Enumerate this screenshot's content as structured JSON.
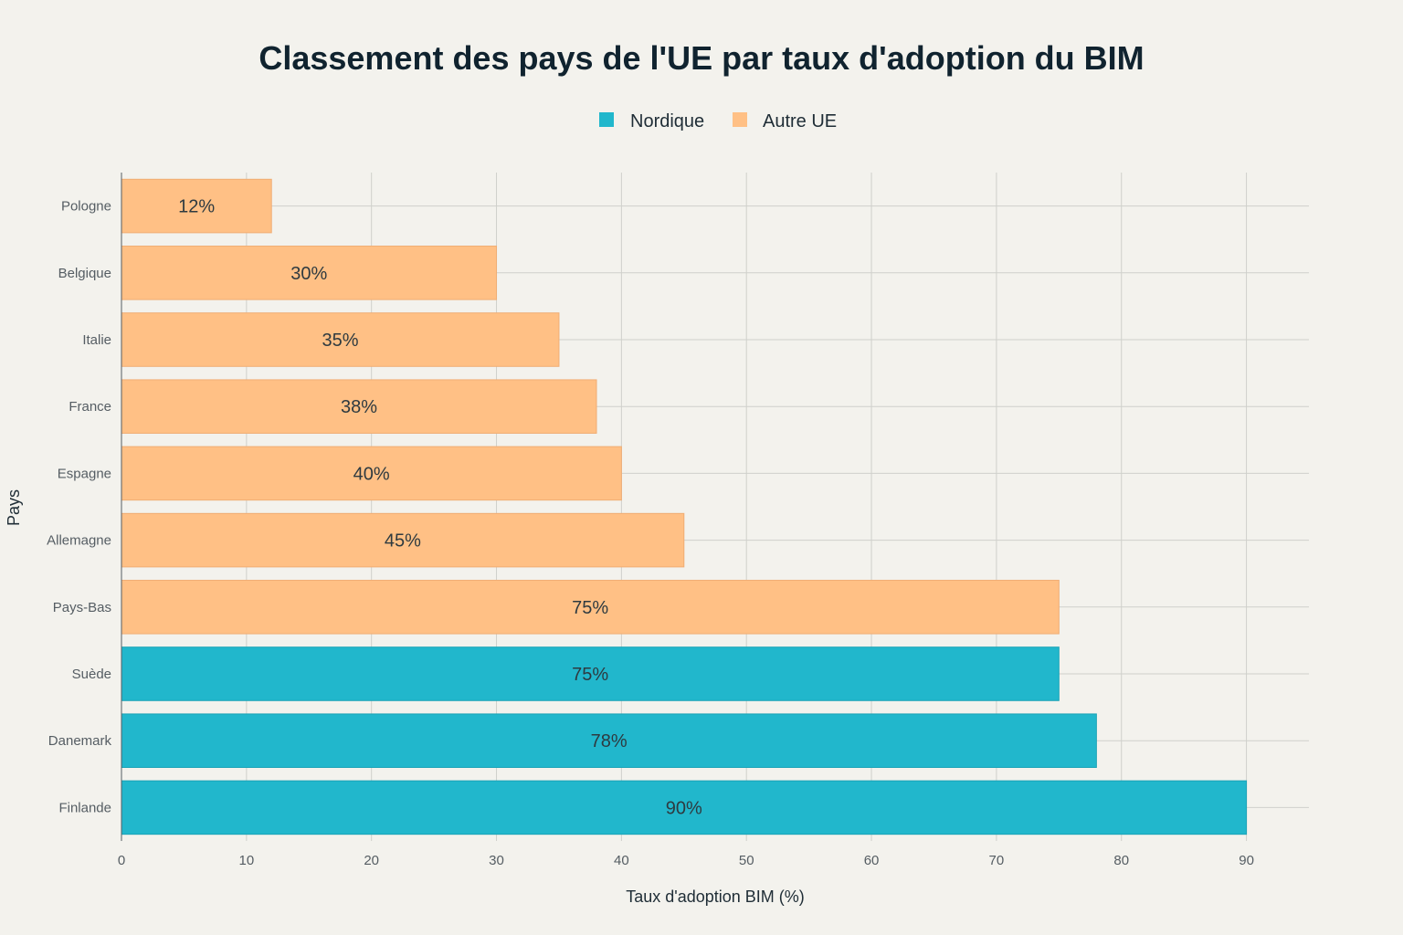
{
  "chart_data": {
    "type": "bar",
    "orientation": "horizontal",
    "title": "Classement des pays de l'UE par taux d'adoption du BIM",
    "xlabel": "Taux d'adoption BIM (%)",
    "ylabel": "Pays",
    "xlim": [
      0,
      95
    ],
    "xticks": [
      0,
      10,
      20,
      30,
      40,
      50,
      60,
      70,
      80,
      90
    ],
    "grid": true,
    "legend_position": "top-center",
    "legend": [
      {
        "name": "Nordique",
        "color": "#21b7cc"
      },
      {
        "name": "Autre UE",
        "color": "#ffc085"
      }
    ],
    "categories": [
      "Pologne",
      "Belgique",
      "Italie",
      "France",
      "Espagne",
      "Allemagne",
      "Pays-Bas",
      "Suède",
      "Danemark",
      "Finlande"
    ],
    "values": [
      12,
      30,
      35,
      38,
      40,
      45,
      75,
      75,
      78,
      90
    ],
    "groups": [
      "Autre UE",
      "Autre UE",
      "Autre UE",
      "Autre UE",
      "Autre UE",
      "Autre UE",
      "Autre UE",
      "Nordique",
      "Nordique",
      "Nordique"
    ],
    "data_labels": [
      "12%",
      "30%",
      "35%",
      "38%",
      "40%",
      "45%",
      "75%",
      "75%",
      "78%",
      "90%"
    ]
  }
}
